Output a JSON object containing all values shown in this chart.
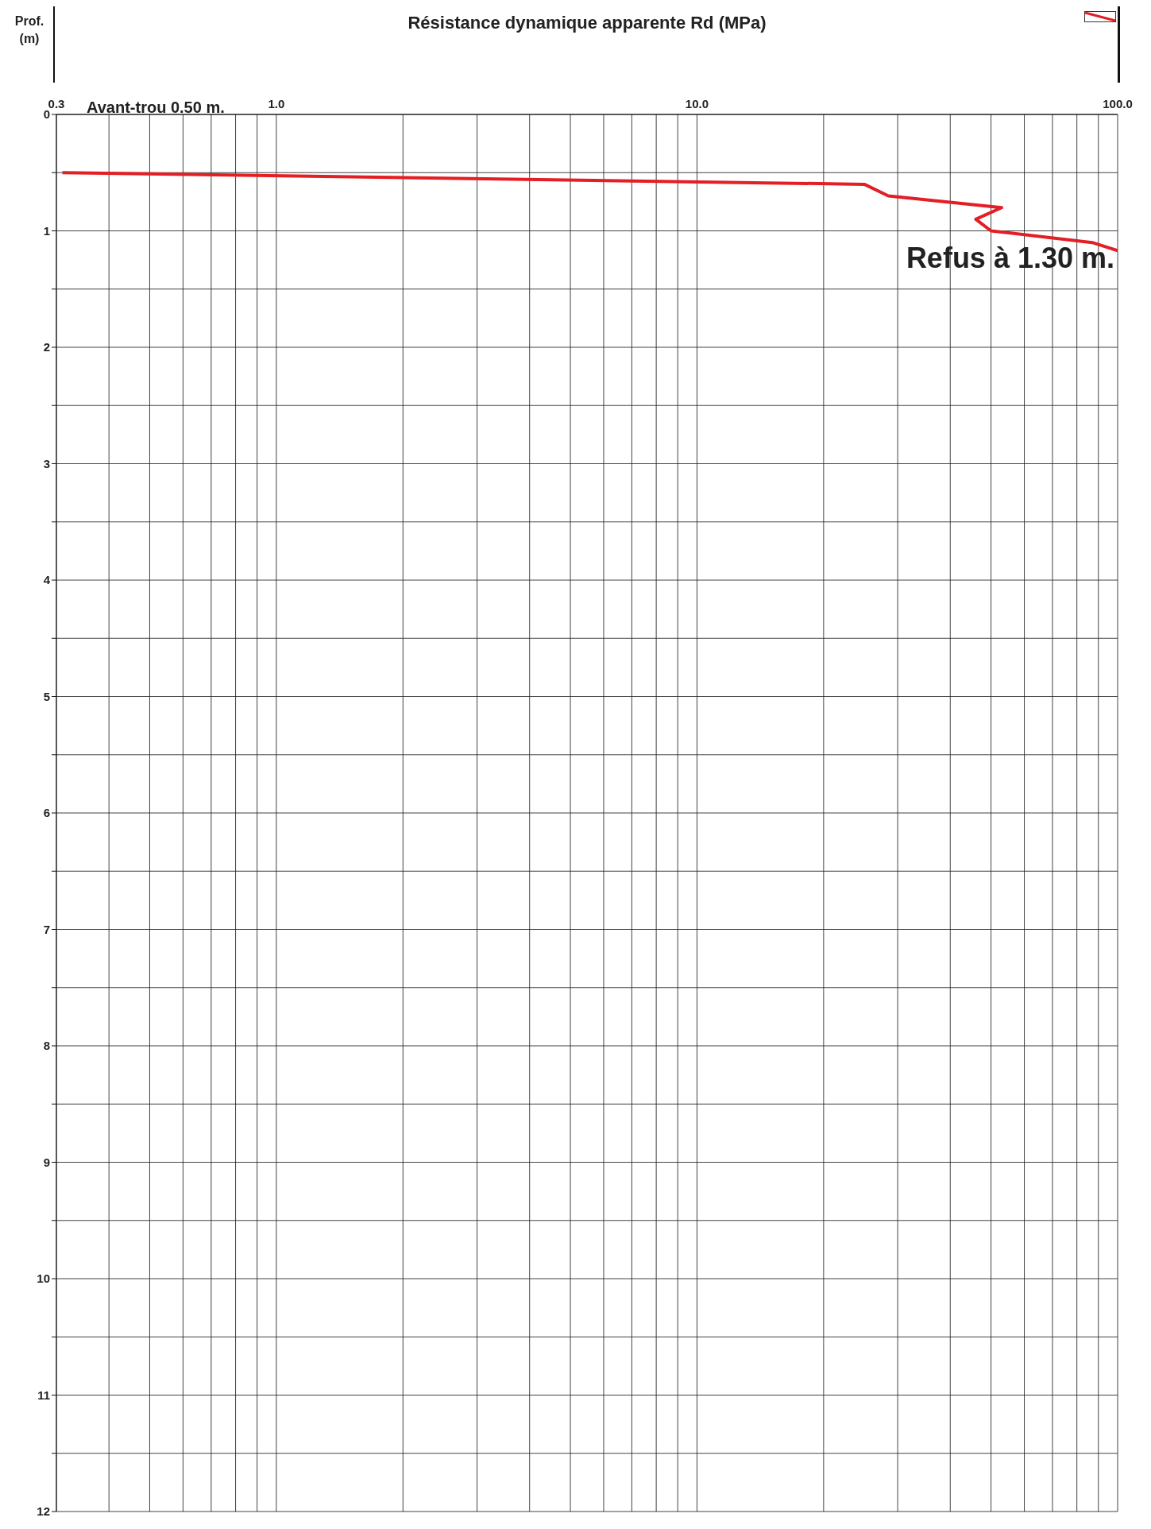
{
  "chart_data": {
    "type": "line",
    "xlabel": "Résistance dynamique apparente Rd (MPa)",
    "ylabel": "Prof. (m)",
    "annotations": [
      "Avant-trou 0.50 m.",
      "Refus à 1.30 m."
    ],
    "x": [
      0.31,
      25,
      28.5,
      53,
      46,
      50,
      87,
      100
    ],
    "series": [
      {
        "color": "#e31e24",
        "values": [
          0.5,
          0.6,
          0.7,
          0.8,
          0.9,
          1.0,
          1.1,
          1.17
        ]
      }
    ],
    "log": "x",
    "xlim": [
      0.3,
      100
    ],
    "xticks": [
      {
        "value": 0.3,
        "label": "0.3"
      },
      {
        "value": 0.4,
        "label": null
      },
      {
        "value": 0.5,
        "label": null
      },
      {
        "value": 0.6,
        "label": null
      },
      {
        "value": 0.7,
        "label": null
      },
      {
        "value": 0.8,
        "label": null
      },
      {
        "value": 0.9,
        "label": null
      },
      {
        "value": 1,
        "label": "1.0"
      },
      {
        "value": 2,
        "label": null
      },
      {
        "value": 3,
        "label": null
      },
      {
        "value": 4,
        "label": null
      },
      {
        "value": 5,
        "label": null
      },
      {
        "value": 6,
        "label": null
      },
      {
        "value": 7,
        "label": null
      },
      {
        "value": 8,
        "label": null
      },
      {
        "value": 9,
        "label": null
      },
      {
        "value": 10,
        "label": "10.0"
      },
      {
        "value": 20,
        "label": null
      },
      {
        "value": 30,
        "label": null
      },
      {
        "value": 40,
        "label": null
      },
      {
        "value": 50,
        "label": null
      },
      {
        "value": 60,
        "label": null
      },
      {
        "value": 70,
        "label": null
      },
      {
        "value": 80,
        "label": null
      },
      {
        "value": 90,
        "label": null
      },
      {
        "value": 100,
        "label": "100.0"
      }
    ],
    "ylim": [
      12,
      0
    ],
    "yticks": [
      0,
      {
        "value": 0.5,
        "label": null
      },
      1,
      {
        "value": 1.5,
        "label": null
      },
      2,
      {
        "value": 2.5,
        "label": null
      },
      3,
      {
        "value": 3.5,
        "label": null
      },
      4,
      {
        "value": 4.5,
        "label": null
      },
      5,
      {
        "value": 5.5,
        "label": null
      },
      6,
      {
        "value": 6.5,
        "label": null
      },
      7,
      {
        "value": 7.5,
        "label": null
      },
      8,
      {
        "value": 8.5,
        "label": null
      },
      9,
      {
        "value": 9.5,
        "label": null
      },
      10,
      {
        "value": 10.5,
        "label": null
      },
      11,
      {
        "value": 11.5,
        "label": null
      },
      12
    ],
    "grid": true,
    "line_style": "solid",
    "marker": "none"
  }
}
